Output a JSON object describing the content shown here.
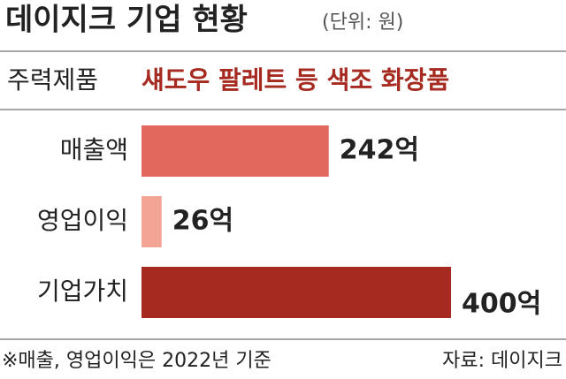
{
  "chart_data": {
    "type": "bar",
    "orientation": "horizontal",
    "title": "데이지크 기업 현황",
    "unit": "(단위: 원)",
    "subtitle_label": "주력제품",
    "subtitle": "섀도우 팔레트 등 색조 화장품",
    "categories": [
      "매출액",
      "영업이익",
      "기업가치"
    ],
    "values": [
      242,
      26,
      400
    ],
    "value_labels": [
      "242억",
      "26억",
      "400억"
    ],
    "colors": [
      "#e2675c",
      "#f2a594",
      "#a62a20"
    ],
    "note": "※매출, 영업이익은 2022년 기준",
    "source": "자료: 데이지크"
  }
}
